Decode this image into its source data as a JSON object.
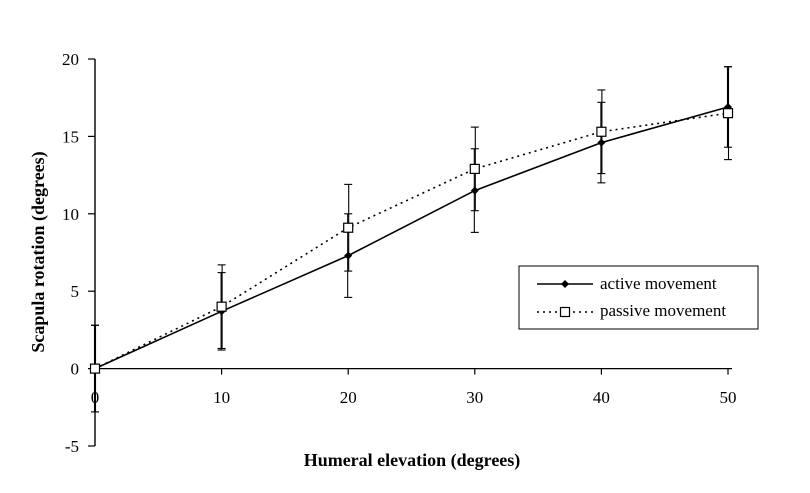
{
  "chart_data": {
    "type": "line",
    "x": [
      0,
      10,
      20,
      30,
      40,
      50
    ],
    "xlabel": "Humeral elevation (degrees)",
    "ylabel": "Scapula rotation (degrees)",
    "xlim": [
      0,
      50
    ],
    "ylim": [
      -5,
      20
    ],
    "x_ticks": [
      "0",
      "10",
      "20",
      "30",
      "40",
      "50"
    ],
    "y_ticks": [
      "20",
      "15",
      "10",
      "5",
      "0",
      "-5"
    ],
    "grid": false,
    "legend_position": "right",
    "series": [
      {
        "name": "active movement",
        "values": [
          0,
          3.7,
          7.3,
          11.5,
          14.6,
          16.9
        ],
        "errors": [
          2.8,
          2.5,
          2.7,
          2.7,
          2.6,
          2.6
        ],
        "line_style": "solid",
        "marker": "filled-diamond",
        "color": "#000000"
      },
      {
        "name": "passive movement",
        "values": [
          0,
          4.0,
          9.1,
          12.9,
          15.3,
          16.5
        ],
        "errors": [
          2.8,
          2.7,
          2.8,
          2.7,
          2.7,
          3.0
        ],
        "line_style": "dotted",
        "marker": "open-square",
        "color": "#000000"
      }
    ]
  }
}
